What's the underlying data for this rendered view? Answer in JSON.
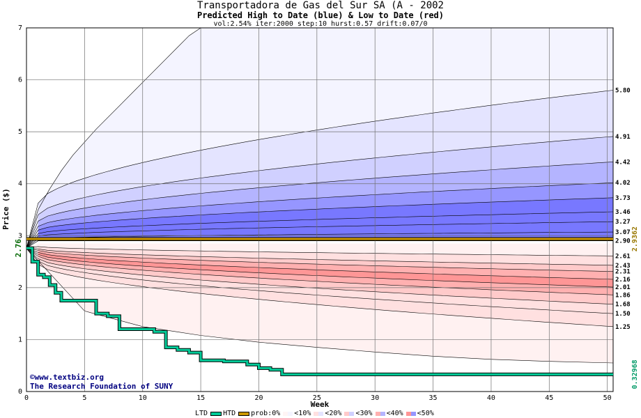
{
  "header": {
    "title": "Transportadora de Gas del Sur SA (A - 2002",
    "subtitle": "Predicted High to Date (blue) &  Low to Date (red)",
    "params": "vol:2.54% iter:2000 step:10 hurst:0.57 drift:0.07/0"
  },
  "credit": {
    "line1": "©www.textbiz.org",
    "line2": "The Research Foundation of SUNY"
  },
  "legend": {
    "ltd": "LTD",
    "htd": "HTD",
    "prob": "prob:0%",
    "p10": "<10%",
    "p20": "<20%",
    "p30": "<30%",
    "p40": "<40%",
    "p50": "<50%"
  },
  "colors": {
    "ltd_line": "#00cc99",
    "htd_line": "#cc9900",
    "blue_bands": [
      "#f4f4ff",
      "#e4e4ff",
      "#d0d0ff",
      "#b4b4ff",
      "#9696ff",
      "#7878ff"
    ],
    "red_bands": [
      "#fff1f1",
      "#ffe0e0",
      "#ffcaca",
      "#ffb0b0",
      "#ff9696",
      "#ff7c7c"
    ]
  },
  "chart_data": {
    "type": "area",
    "title": "Transportadora de Gas del Sur SA (A - 2002",
    "xlabel": "Week",
    "ylabel": "Price ($)",
    "xlim": [
      0,
      50.5
    ],
    "ylim": [
      0,
      7
    ],
    "x_ticks": [
      0,
      5,
      10,
      15,
      20,
      25,
      30,
      35,
      40,
      45,
      50
    ],
    "y_ticks": [
      0,
      1,
      2,
      3,
      4,
      5,
      6,
      7
    ],
    "grid": true,
    "start_price": 2.76,
    "start_label": "2.76",
    "right_axis_labels": {
      "high": "2.9362",
      "low": "0.32968"
    },
    "high_quantile_end_values": [
      5.8,
      4.91,
      4.42,
      4.02,
      3.73,
      3.46,
      3.27,
      3.07,
      2.9
    ],
    "low_quantile_end_values": [
      2.61,
      2.43,
      2.31,
      2.16,
      2.01,
      1.86,
      1.68,
      1.5,
      1.25
    ],
    "end_labels": [
      "5.80",
      "4.91",
      "4.42",
      "4.02",
      "3.73",
      "3.46",
      "3.27",
      "3.07",
      "2.90",
      "2.61",
      "2.43",
      "2.31",
      "2.16",
      "2.01",
      "1.86",
      "1.68",
      "1.50",
      "1.25"
    ],
    "max_envelope": {
      "x": [
        0,
        1,
        2,
        3,
        4,
        6,
        8,
        10,
        12,
        14,
        15
      ],
      "y": [
        2.76,
        3.5,
        3.9,
        4.25,
        4.55,
        5.05,
        5.5,
        5.95,
        6.4,
        6.85,
        7.0
      ]
    },
    "min_envelope": {
      "x": [
        0,
        5,
        10,
        15,
        20,
        25,
        30,
        35,
        40,
        45,
        50.5
      ],
      "y": [
        2.76,
        1.55,
        1.25,
        1.08,
        0.95,
        0.85,
        0.76,
        0.68,
        0.62,
        0.58,
        0.55
      ]
    },
    "series": [
      {
        "name": "HTD",
        "x": [
          0,
          50.5
        ],
        "y": [
          2.9362,
          2.9362
        ]
      },
      {
        "name": "LTD",
        "x": [
          0,
          0.5,
          1,
          1.5,
          2,
          2.5,
          3,
          4,
          5,
          6,
          7,
          8,
          9,
          10,
          11,
          12,
          13,
          14,
          15,
          16,
          17,
          18,
          19,
          20,
          21,
          22,
          25,
          30,
          35,
          40,
          45,
          50.5
        ],
        "y": [
          2.76,
          2.5,
          2.25,
          2.2,
          2.05,
          1.9,
          1.75,
          1.75,
          1.75,
          1.5,
          1.45,
          1.2,
          1.2,
          1.2,
          1.15,
          0.85,
          0.8,
          0.75,
          0.6,
          0.6,
          0.58,
          0.58,
          0.52,
          0.45,
          0.42,
          0.33,
          0.33,
          0.33,
          0.33,
          0.33,
          0.33,
          0.33
        ]
      }
    ]
  }
}
